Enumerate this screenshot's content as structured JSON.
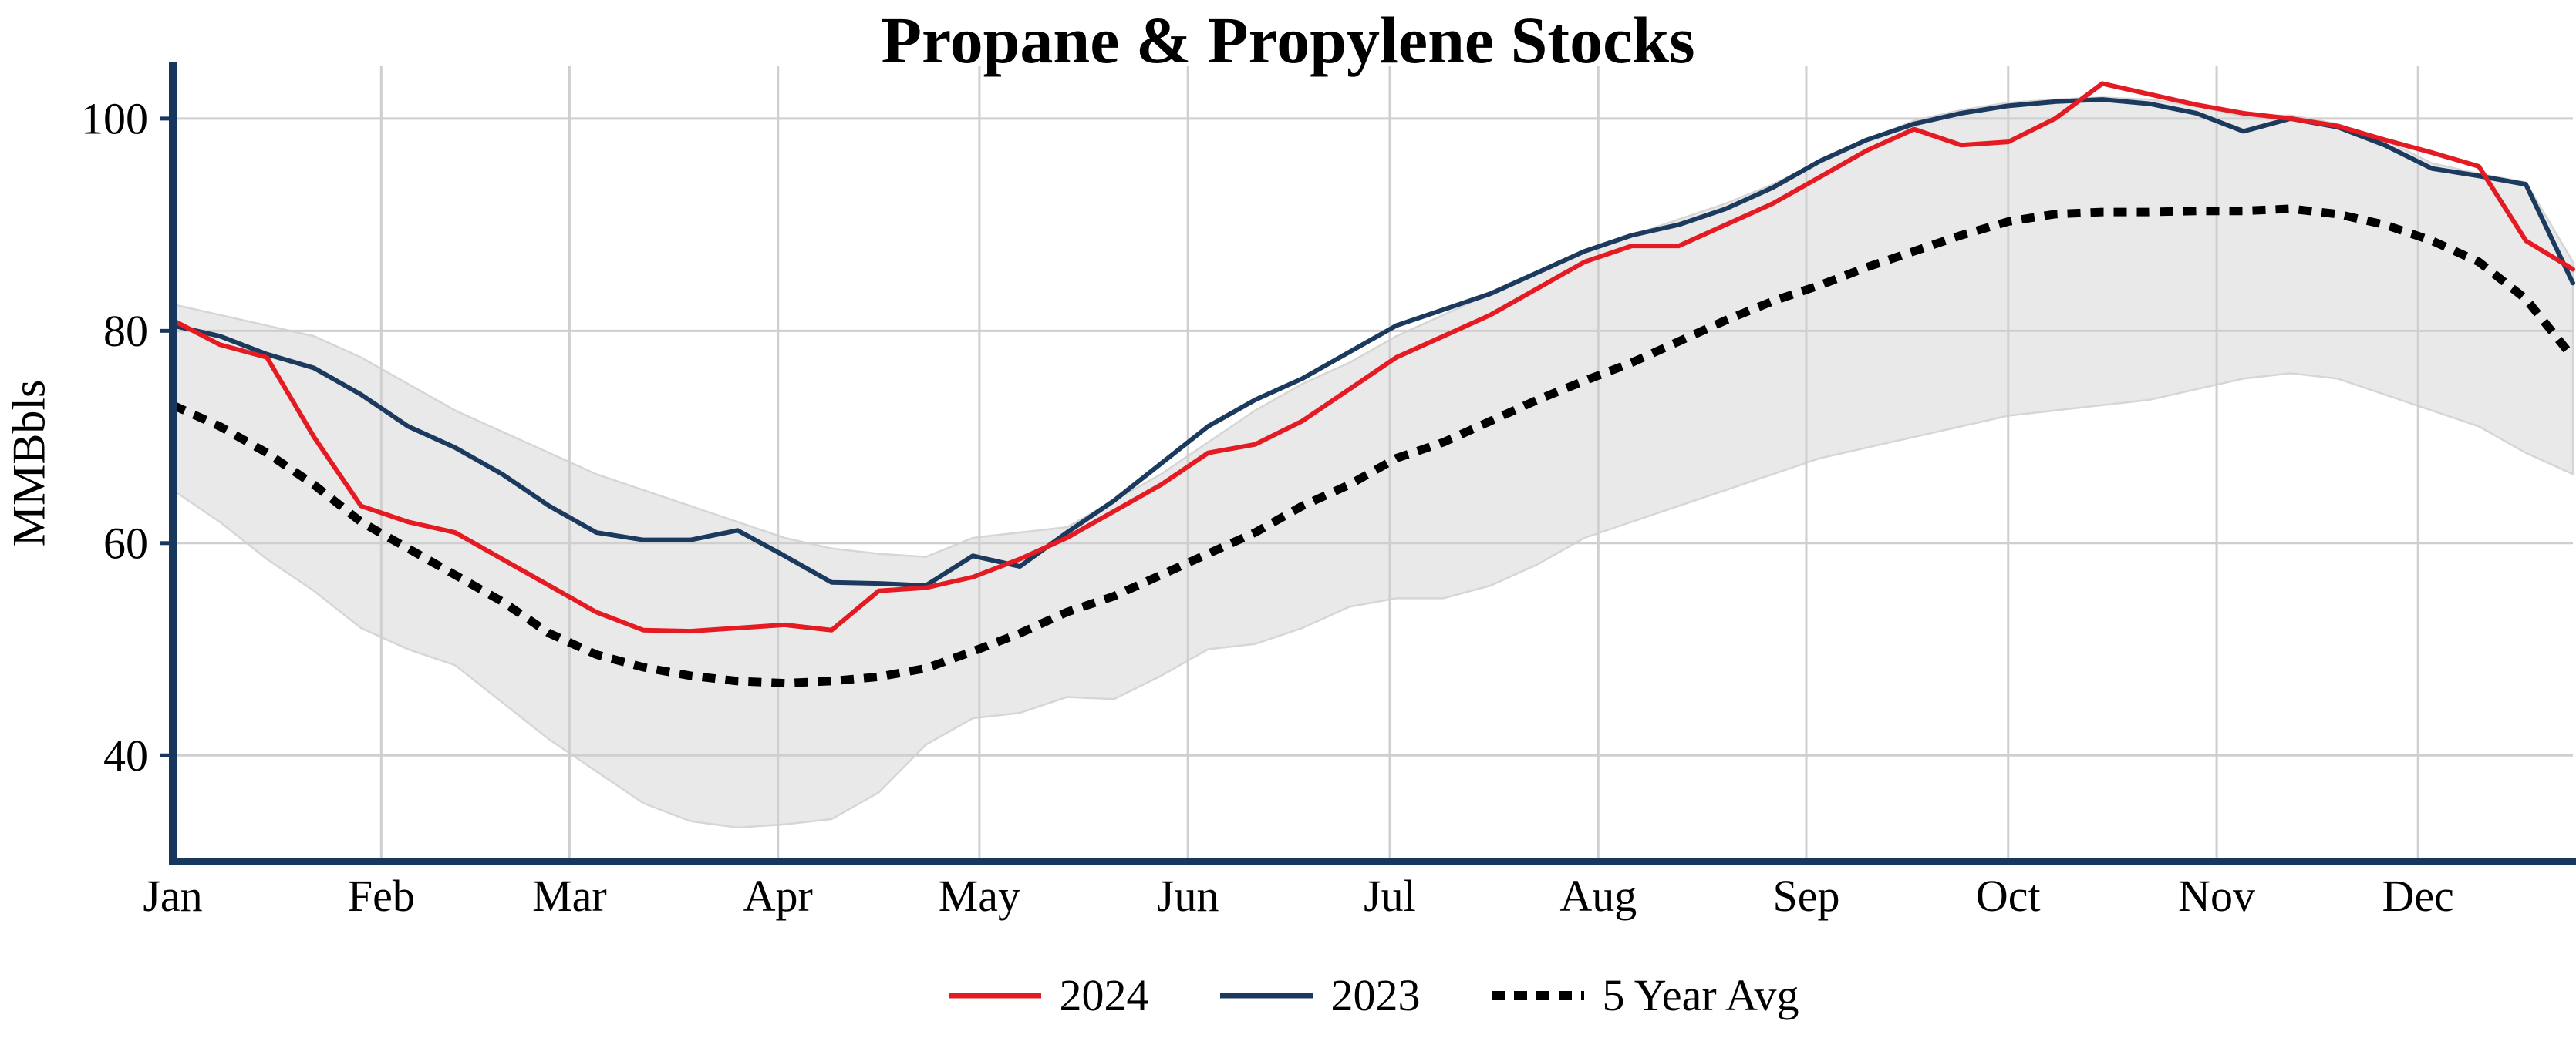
{
  "chart_data": {
    "type": "line",
    "title": "Propane & Propylene Stocks",
    "xlabel": "",
    "ylabel": "MMBbls",
    "x_type": "weekly",
    "categories": [
      "Jan",
      "Feb",
      "Mar",
      "Apr",
      "May",
      "Jun",
      "Jul",
      "Aug",
      "Sep",
      "Oct",
      "Nov",
      "Dec"
    ],
    "month_start_weeks": [
      0,
      4.43,
      8.43,
      12.86,
      17.14,
      21.57,
      25.86,
      30.29,
      34.71,
      39,
      43.43,
      47.71
    ],
    "ylim": [
      30,
      105
    ],
    "yticks": [
      40,
      60,
      80,
      100
    ],
    "grid": true,
    "legend_position": "bottom",
    "colors": {
      "red_2024": "#e41b23",
      "navy_2023": "#1c3a5e",
      "avg_black": "#000000",
      "axis": "#17375e",
      "grid": "#cfcfcf",
      "band": "#e9e9e9",
      "band_edge": "#d6d6d6"
    },
    "band": {
      "upper": [
        82.5,
        81.5,
        80.5,
        79.5,
        77.5,
        75,
        72.5,
        70.5,
        68.5,
        66.5,
        65,
        63.5,
        62,
        60.5,
        59.5,
        59,
        58.7,
        60.5,
        61,
        61.5,
        64,
        66.5,
        69.5,
        72.5,
        75,
        77,
        79.5,
        81.5,
        83.5,
        85.5,
        87.5,
        89,
        90.5,
        92,
        93.8,
        96,
        98,
        99.8,
        100.8,
        101.5,
        101.8,
        102,
        101.8,
        101.2,
        100.2,
        100.3,
        99.5,
        98,
        95.8,
        94.8,
        94,
        86.5
      ],
      "lower": [
        65,
        62,
        58.5,
        55.5,
        52,
        50,
        48.5,
        45,
        41.5,
        38.5,
        35.5,
        33.8,
        33.2,
        33.5,
        34,
        36.5,
        41,
        43.5,
        44,
        45.5,
        45.3,
        47.5,
        50,
        50.5,
        52,
        54,
        54.8,
        54.8,
        56,
        58,
        60.5,
        62,
        63.5,
        65,
        66.5,
        68,
        69,
        70,
        71,
        72,
        72.5,
        73,
        73.5,
        74.5,
        75.5,
        76,
        75.5,
        74,
        72.5,
        71,
        68.5,
        66.5
      ]
    },
    "series": [
      {
        "name": "2024",
        "color": "#e41b23",
        "style": "solid",
        "values": [
          81,
          78.7,
          77.5,
          70,
          63.5,
          62,
          61,
          58.5,
          56,
          53.5,
          51.8,
          51.7,
          52,
          52.3,
          51.8,
          55.5,
          55.8,
          56.8,
          58.5,
          60.5,
          63,
          65.5,
          68.5,
          69.3,
          71.5,
          74.5,
          77.5,
          79.5,
          81.5,
          84,
          86.5,
          88,
          88,
          90,
          92,
          94.5,
          97,
          99,
          97.5,
          97.8,
          100,
          103.3,
          102.3,
          101.3,
          100.5,
          100,
          99.3,
          98,
          96.8,
          95.5,
          88.5,
          85.8
        ]
      },
      {
        "name": "2023",
        "color": "#1c3a5e",
        "style": "solid",
        "values": [
          80.5,
          79.5,
          77.8,
          76.5,
          74,
          71,
          69,
          66.5,
          63.5,
          61,
          60.3,
          60.3,
          61.2,
          58.8,
          56.3,
          56.2,
          56,
          58.8,
          57.8,
          61,
          64,
          67.5,
          71,
          73.5,
          75.5,
          78,
          80.5,
          82,
          83.5,
          85.5,
          87.5,
          89,
          90,
          91.5,
          93.5,
          96,
          98,
          99.5,
          100.5,
          101.2,
          101.6,
          101.8,
          101.4,
          100.5,
          98.8,
          100,
          99.2,
          97.5,
          95.3,
          94.6,
          93.8,
          84.5
        ]
      },
      {
        "name": "5 Year Avg",
        "color": "#000000",
        "style": "dotted",
        "values": [
          73,
          71,
          68.5,
          65.5,
          62,
          59.5,
          57,
          54.5,
          51.5,
          49.5,
          48.3,
          47.5,
          47,
          46.8,
          47,
          47.4,
          48.2,
          49.8,
          51.5,
          53.5,
          55,
          57,
          59,
          61,
          63.5,
          65.5,
          68,
          69.5,
          71.5,
          73.5,
          75.3,
          77,
          79,
          81,
          82.8,
          84.3,
          86,
          87.5,
          89,
          90.3,
          91,
          91.2,
          91.2,
          91.3,
          91.3,
          91.5,
          91,
          90,
          88.5,
          86.5,
          83,
          77.5
        ]
      }
    ]
  }
}
